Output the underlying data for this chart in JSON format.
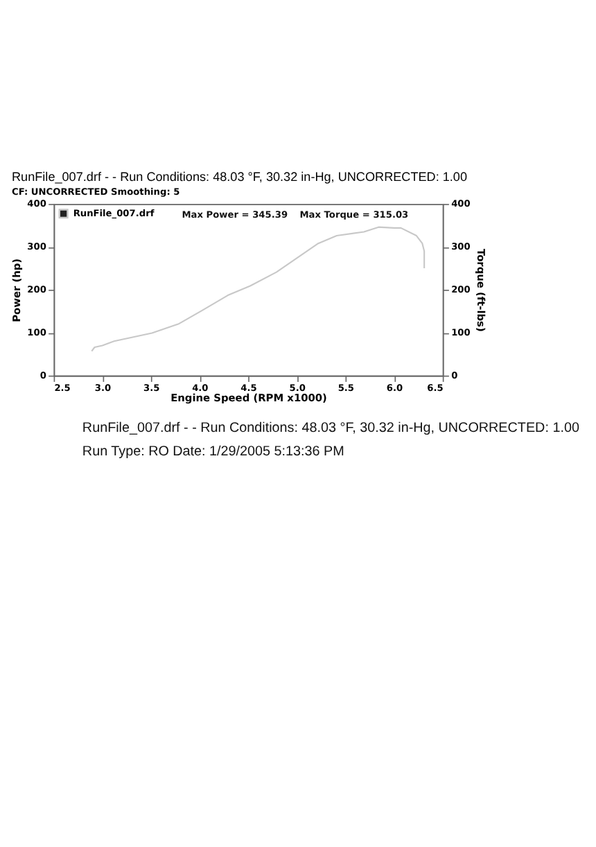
{
  "chart_data": {
    "type": "line",
    "title": "RunFile_007.drf -  - Run Conditions: 48.03 °F, 30.32 in-Hg, UNCORRECTED: 1.00",
    "subtitle": "CF: UNCORRECTED  Smoothing: 5",
    "xlabel": "Engine Speed (RPM x1000)",
    "ylabel": "Power (hp)",
    "y2label": "Torque (ft-lbs)",
    "xlim": [
      2.5,
      6.5
    ],
    "xticks": [
      {
        "value": 2.5,
        "label": "2.5"
      },
      {
        "value": 3.0,
        "label": "3.0"
      },
      {
        "value": 3.5,
        "label": "3.5"
      },
      {
        "value": 4.0,
        "label": "4.0"
      },
      {
        "value": 4.5,
        "label": "4.5"
      },
      {
        "value": 5.0,
        "label": "5.0"
      },
      {
        "value": 5.5,
        "label": "5.5"
      },
      {
        "value": 6.0,
        "label": "6.0"
      },
      {
        "value": 6.5,
        "label": "6.5"
      }
    ],
    "ylim": [
      0,
      400
    ],
    "yticks": [
      0,
      100,
      200,
      300,
      400
    ],
    "y2lim": [
      0,
      400
    ],
    "y2ticks": [
      0,
      100,
      200,
      300,
      400
    ],
    "series": [
      {
        "name": "RunFile_007.drf",
        "color": "#c8c8c8",
        "x": [
          2.89,
          2.92,
          3.0,
          3.12,
          3.51,
          3.78,
          4.02,
          4.29,
          4.52,
          4.79,
          5.22,
          5.41,
          5.69,
          5.84,
          6.0,
          6.07,
          6.23,
          6.29,
          6.31,
          6.31
        ],
        "values": [
          57,
          66,
          70,
          80,
          99,
          120,
          151,
          187,
          209,
          241,
          308,
          326,
          335,
          346,
          344,
          344,
          326,
          308,
          290,
          250
        ]
      }
    ],
    "legend": "top left",
    "grid": false,
    "marker": "none",
    "line_style": "solid",
    "annotations": [
      "Max Power = 345.39",
      "Max Torque = 315.03",
      "RunFile_007.drf -  - Run Conditions: 48.03 °F, 30.32 in-Hg, UNCORRECTED: 1.00",
      "Run Type: RO  Date: 1/29/2005 5:13:36 PM"
    ]
  }
}
